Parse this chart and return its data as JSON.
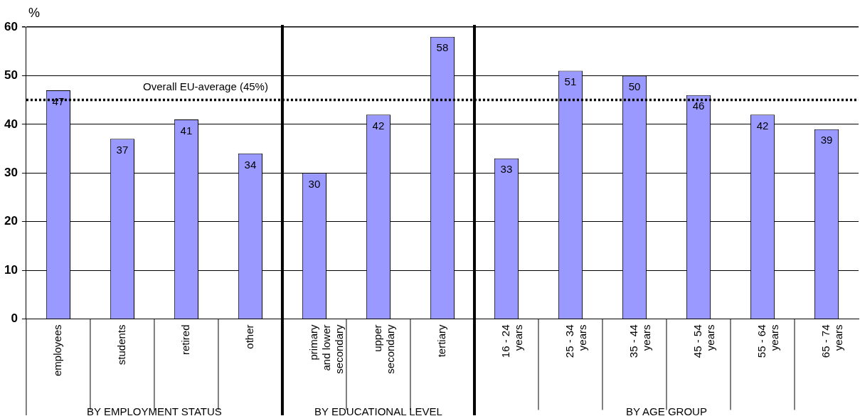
{
  "chart_data": {
    "type": "bar",
    "ylabel": "%",
    "categories": [
      "employees",
      "students",
      "retired",
      "other",
      "primary and lower secondary",
      "upper secondary",
      "tertiary",
      "16 - 24 years",
      "25 - 34 years",
      "35 - 44 years",
      "45 - 54 years",
      "55 - 64 years",
      "65 - 74 years"
    ],
    "values": [
      47,
      37,
      41,
      34,
      30,
      42,
      58,
      33,
      51,
      50,
      46,
      42,
      39
    ],
    "color": "#9999ff",
    "data_labels": true,
    "ylim": [
      0,
      60
    ],
    "yticks": [
      0,
      10,
      20,
      30,
      40,
      50,
      60
    ],
    "grid": "y",
    "legend": false,
    "ref_lines": [
      {
        "axis": "y",
        "value": 45,
        "label": "Overall EU-average (45%)",
        "color": "#000000",
        "line_style": "dotted"
      }
    ],
    "annotations": [
      "BY EMPLOYMENT STATUS",
      "BY EDUCATIONAL LEVEL",
      "BY AGE GROUP"
    ]
  }
}
